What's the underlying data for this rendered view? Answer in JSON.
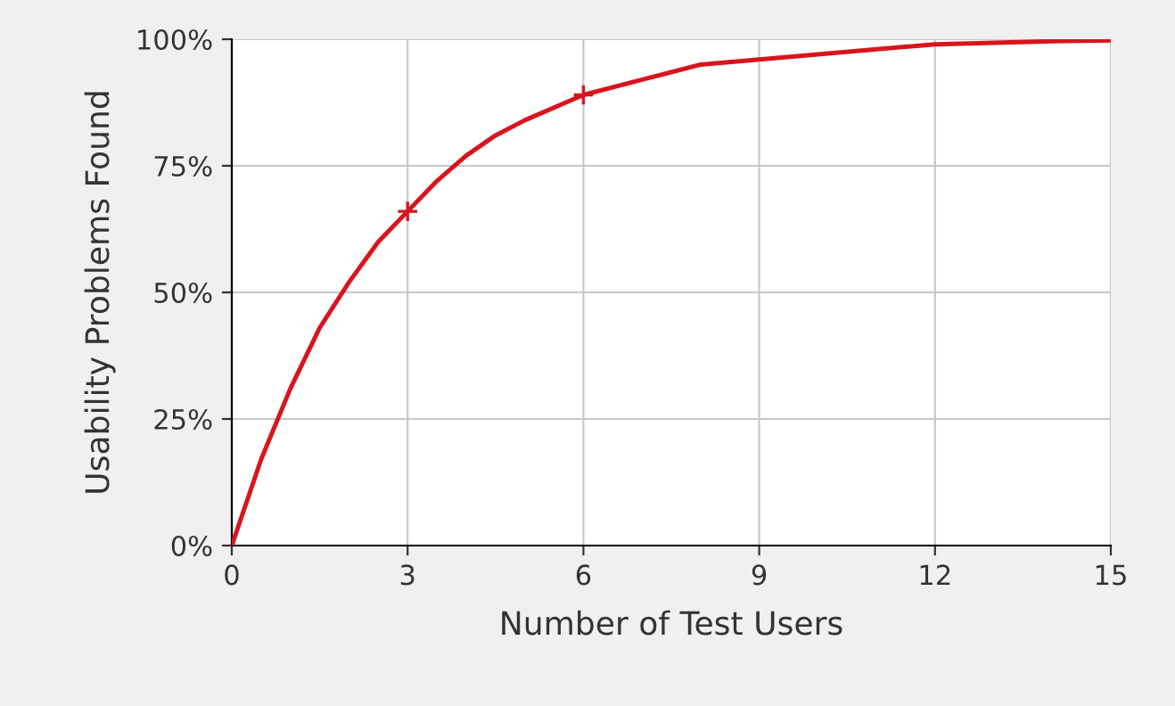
{
  "chart_data": {
    "type": "line",
    "xlabel": "Number of Test Users",
    "ylabel": "Usability Problems Found",
    "xlim": [
      0,
      15
    ],
    "ylim": [
      0,
      100
    ],
    "xticks": [
      0,
      3,
      6,
      9,
      12,
      15
    ],
    "yticks": [
      {
        "value": 0,
        "label": "0%"
      },
      {
        "value": 25,
        "label": "25%"
      },
      {
        "value": 50,
        "label": "50%"
      },
      {
        "value": 75,
        "label": "75%"
      },
      {
        "value": 100,
        "label": "100%"
      }
    ],
    "grid": true,
    "marker": "none",
    "line_style": "solid",
    "series": [
      {
        "color": "#d9141e",
        "x": [
          0,
          0.5,
          1,
          1.5,
          2,
          2.5,
          3,
          3.5,
          4,
          4.5,
          5,
          6,
          7,
          8,
          9,
          10,
          11,
          12,
          13,
          14,
          15
        ],
        "values": [
          0,
          17,
          31,
          43,
          52,
          60,
          66,
          72,
          77,
          81,
          84,
          89,
          92,
          95,
          96,
          97,
          98,
          99,
          99.3,
          99.6,
          99.8
        ]
      },
      {
        "type": "scatter",
        "marker": "cross",
        "color": "#d9141e",
        "x": [
          3,
          6
        ],
        "values": [
          66,
          89
        ]
      }
    ]
  }
}
